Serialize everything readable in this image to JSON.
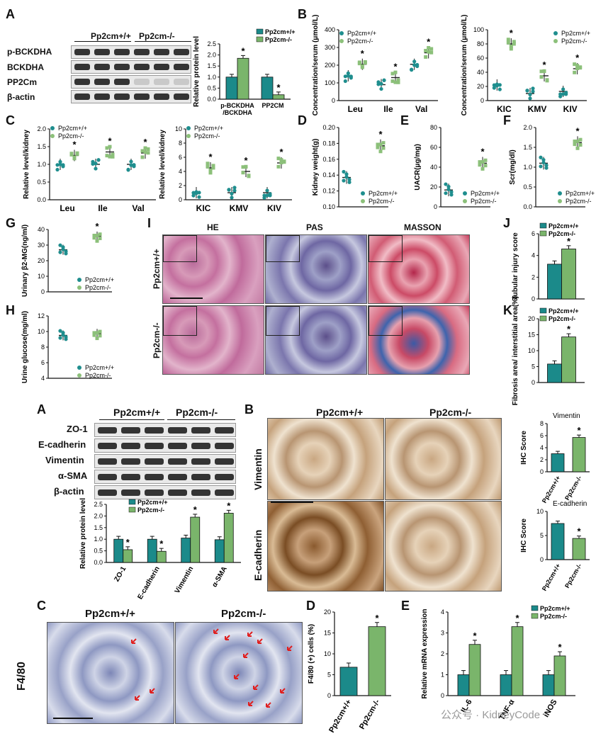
{
  "panels": {
    "A": "A",
    "B": "B",
    "C": "C",
    "D": "D",
    "E": "E",
    "F": "F",
    "G": "G",
    "H": "H",
    "I": "I",
    "J": "J",
    "K": "K",
    "A2": "A",
    "B2": "B",
    "C2": "C",
    "D2": "D",
    "E2": "E"
  },
  "legend": {
    "wt": "Pp2cm+/+",
    "ko": "Pp2cm-/-",
    "colors": {
      "wt": "#1b8a8a",
      "ko": "#7ab56b",
      "wt_dot": "#1f8e8e",
      "ko_dot": "#8cc07a"
    }
  },
  "blotA": {
    "group_wt": "Pp2cm+/+",
    "group_ko": "Pp2cm-/-",
    "rows": [
      "p-BCKDHA",
      "BCKDHA",
      "PP2Cm",
      "β-actin"
    ]
  },
  "blotA2": {
    "group_wt": "Pp2cm+/+",
    "group_ko": "Pp2cm-/-",
    "rows": [
      "ZO-1",
      "E-cadherin",
      "Vimentin",
      "α-SMA",
      "β-actin"
    ]
  },
  "histology": {
    "cols": [
      "HE",
      "PAS",
      "MASSON"
    ],
    "rows": [
      "Pp2cm+/+",
      "Pp2cm-/-"
    ]
  },
  "ihc": {
    "cols": [
      "Pp2cm+/+",
      "Pp2cm-/-"
    ],
    "rows": [
      "Vimentin",
      "E-cadherin"
    ]
  },
  "f480": {
    "cols": [
      "Pp2cm+/+",
      "Pp2cm-/-"
    ],
    "row": "F4/80"
  },
  "watermark": "公众号 · KidneyCode",
  "chart_data": [
    {
      "id": "A_bar",
      "type": "bar",
      "ylabel": "Relative protein level",
      "ylim": [
        0,
        2.5
      ],
      "ticks": [
        0,
        0.5,
        1.0,
        1.5,
        2.0,
        2.5
      ],
      "categories": [
        "p-BCKDHA\n/BCKDHA",
        "PP2CM"
      ],
      "series": [
        {
          "name": "Pp2cm+/+",
          "values": [
            1.0,
            1.0
          ]
        },
        {
          "name": "Pp2cm-/-",
          "values": [
            1.85,
            0.2
          ]
        }
      ],
      "sig": [
        false,
        true,
        false,
        true
      ]
    },
    {
      "id": "B_left",
      "type": "scatter",
      "ylabel": "Concentration/serum (μmol/L)",
      "ylim": [
        0,
        400
      ],
      "ticks": [
        0,
        100,
        200,
        300,
        400
      ],
      "categories": [
        "Leu",
        "Ile",
        "Val"
      ],
      "series": [
        {
          "name": "Pp2cm+/+",
          "values": [
            140,
            90,
            205
          ]
        },
        {
          "name": "Pp2cm-/-",
          "values": [
            205,
            130,
            270
          ]
        }
      ],
      "sig": [
        true,
        true,
        true
      ]
    },
    {
      "id": "B_right",
      "type": "scatter",
      "ylabel": "Concentration/serum (μmol/L)",
      "ylim": [
        0,
        100
      ],
      "ticks": [
        0,
        20,
        40,
        60,
        80,
        100
      ],
      "categories": [
        "KIC",
        "KMV",
        "KIV"
      ],
      "series": [
        {
          "name": "Pp2cm+/+",
          "values": [
            22,
            10,
            13
          ]
        },
        {
          "name": "Pp2cm-/-",
          "values": [
            80,
            35,
            45
          ]
        }
      ],
      "sig": [
        true,
        true,
        true
      ]
    },
    {
      "id": "C_left",
      "type": "scatter",
      "ylabel": "Relative level/kidney",
      "ylim": [
        0,
        2.0
      ],
      "ticks": [
        0,
        0.5,
        1.0,
        1.5,
        2.0
      ],
      "categories": [
        "Leu",
        "Ile",
        "Val"
      ],
      "series": [
        {
          "name": "Pp2cm+/+",
          "values": [
            1.0,
            1.0,
            1.0
          ]
        },
        {
          "name": "Pp2cm-/-",
          "values": [
            1.25,
            1.35,
            1.32
          ]
        }
      ],
      "sig": [
        true,
        true,
        true
      ]
    },
    {
      "id": "C_right",
      "type": "scatter",
      "ylabel": "Relative level/kidney",
      "ylim": [
        0,
        10
      ],
      "ticks": [
        0,
        2,
        4,
        6,
        8,
        10
      ],
      "categories": [
        "KIC",
        "KMV",
        "KIV"
      ],
      "series": [
        {
          "name": "Pp2cm+/+",
          "values": [
            1.0,
            1.0,
            1.0
          ]
        },
        {
          "name": "Pp2cm-/-",
          "values": [
            4.5,
            4.0,
            5.2
          ]
        }
      ],
      "sig": [
        true,
        true,
        true
      ]
    },
    {
      "id": "D",
      "type": "scatter",
      "ylabel": "Kidney weight(g)",
      "ylim": [
        0.1,
        0.2
      ],
      "ticks": [
        0.1,
        0.12,
        0.14,
        0.16,
        0.18,
        0.2
      ],
      "series": [
        {
          "name": "Pp2cm+/+",
          "values": [
            0.137
          ]
        },
        {
          "name": "Pp2cm-/-",
          "values": [
            0.177
          ]
        }
      ],
      "sig": [
        true
      ]
    },
    {
      "id": "E",
      "type": "scatter",
      "ylabel": "UACR(μg/mg)",
      "ylim": [
        0,
        80
      ],
      "ticks": [
        0,
        20,
        40,
        60,
        80
      ],
      "series": [
        {
          "name": "Pp2cm+/+",
          "values": [
            17
          ]
        },
        {
          "name": "Pp2cm-/-",
          "values": [
            44
          ]
        }
      ],
      "sig": [
        true
      ]
    },
    {
      "id": "F",
      "type": "scatter",
      "ylabel": "Scr(mg/dl)",
      "ylim": [
        0,
        2.0
      ],
      "ticks": [
        0,
        0.5,
        1.0,
        1.5,
        2.0
      ],
      "series": [
        {
          "name": "Pp2cm+/+",
          "values": [
            1.1
          ]
        },
        {
          "name": "Pp2cm-/-",
          "values": [
            1.62
          ]
        }
      ],
      "sig": [
        true
      ]
    },
    {
      "id": "G",
      "type": "scatter",
      "ylabel": "Urinary β2-MG(ng/ml)",
      "ylim": [
        0,
        40
      ],
      "ticks": [
        0,
        10,
        20,
        30,
        40
      ],
      "series": [
        {
          "name": "Pp2cm+/+",
          "values": [
            27
          ]
        },
        {
          "name": "Pp2cm-/-",
          "values": [
            35.5
          ]
        }
      ],
      "sig": [
        true
      ]
    },
    {
      "id": "H",
      "type": "scatter",
      "ylabel": "Urine glucose(mg/ml)",
      "ylim": [
        4,
        12
      ],
      "ticks": [
        4,
        6,
        8,
        10,
        12
      ],
      "series": [
        {
          "name": "Pp2cm+/+",
          "values": [
            9.5
          ]
        },
        {
          "name": "Pp2cm-/-",
          "values": [
            9.7
          ]
        }
      ],
      "sig": [
        false
      ]
    },
    {
      "id": "J",
      "type": "bar",
      "ylabel": "Tubular injury score",
      "ylim": [
        0,
        6
      ],
      "ticks": [
        0,
        2,
        4,
        6
      ],
      "series": [
        {
          "name": "Pp2cm+/+",
          "values": [
            3.2
          ]
        },
        {
          "name": "Pp2cm-/-",
          "values": [
            4.6
          ]
        }
      ],
      "sig": [
        false,
        true
      ]
    },
    {
      "id": "K",
      "type": "bar",
      "ylabel": "Fibrosis area/ interstitial area(%)",
      "ylim": [
        0,
        20
      ],
      "ticks": [
        0,
        5,
        10,
        15,
        20
      ],
      "series": [
        {
          "name": "Pp2cm+/+",
          "values": [
            5.8
          ]
        },
        {
          "name": "Pp2cm-/-",
          "values": [
            14.3
          ]
        }
      ],
      "sig": [
        false,
        true
      ]
    },
    {
      "id": "A2_bar",
      "type": "bar",
      "ylabel": "Relative protein level",
      "ylim": [
        0,
        2.5
      ],
      "ticks": [
        0,
        0.5,
        1.0,
        1.5,
        2.0,
        2.5
      ],
      "categories": [
        "ZO-1",
        "E-cadherin",
        "Vimentin",
        "α-SMA"
      ],
      "series": [
        {
          "name": "Pp2cm+/+",
          "values": [
            1.0,
            1.0,
            1.05,
            0.98
          ]
        },
        {
          "name": "Pp2cm-/-",
          "values": [
            0.55,
            0.48,
            1.95,
            2.12
          ]
        }
      ],
      "sig": [
        false,
        true,
        false,
        true,
        false,
        true,
        false,
        true
      ]
    },
    {
      "id": "Vim_IHC",
      "type": "bar",
      "title": "Vimentin",
      "ylabel": "IHC Score",
      "ylim": [
        0,
        8
      ],
      "ticks": [
        0,
        2,
        4,
        6,
        8
      ],
      "categories": [
        "Pp2cm+/+",
        "Pp2cm-/-"
      ],
      "series": [
        {
          "name": "IHC",
          "values": [
            3.0,
            5.7
          ]
        }
      ],
      "sig": [
        false,
        true
      ]
    },
    {
      "id": "Ecad_IHC",
      "type": "bar",
      "title": "E-cadherin",
      "ylabel": "IHC Score",
      "ylim": [
        0,
        10
      ],
      "ticks": [
        0,
        5,
        10
      ],
      "categories": [
        "Pp2cm+/+",
        "Pp2cm-/-"
      ],
      "series": [
        {
          "name": "IHC",
          "values": [
            7.5,
            4.4
          ]
        }
      ],
      "sig": [
        false,
        true
      ]
    },
    {
      "id": "D2",
      "type": "bar",
      "ylabel": "F4/80 (+) cells (%)",
      "ylim": [
        0,
        20
      ],
      "ticks": [
        0,
        5,
        10,
        15,
        20
      ],
      "categories": [
        "Pp2cm+/+",
        "Pp2cm-/-"
      ],
      "series": [
        {
          "name": "F4/80",
          "values": [
            6.8,
            16.5
          ]
        }
      ],
      "sig": [
        false,
        true
      ]
    },
    {
      "id": "E2",
      "type": "bar",
      "ylabel": "Relative mRNA expression",
      "ylim": [
        0,
        4
      ],
      "ticks": [
        0,
        1,
        2,
        3,
        4
      ],
      "categories": [
        "IL-6",
        "TNF-α",
        "iNOS"
      ],
      "series": [
        {
          "name": "Pp2cm+/+",
          "values": [
            1.0,
            1.0,
            1.0
          ]
        },
        {
          "name": "Pp2cm-/-",
          "values": [
            2.45,
            3.3,
            1.9
          ]
        }
      ],
      "sig": [
        false,
        true,
        false,
        true,
        false,
        true
      ]
    }
  ]
}
